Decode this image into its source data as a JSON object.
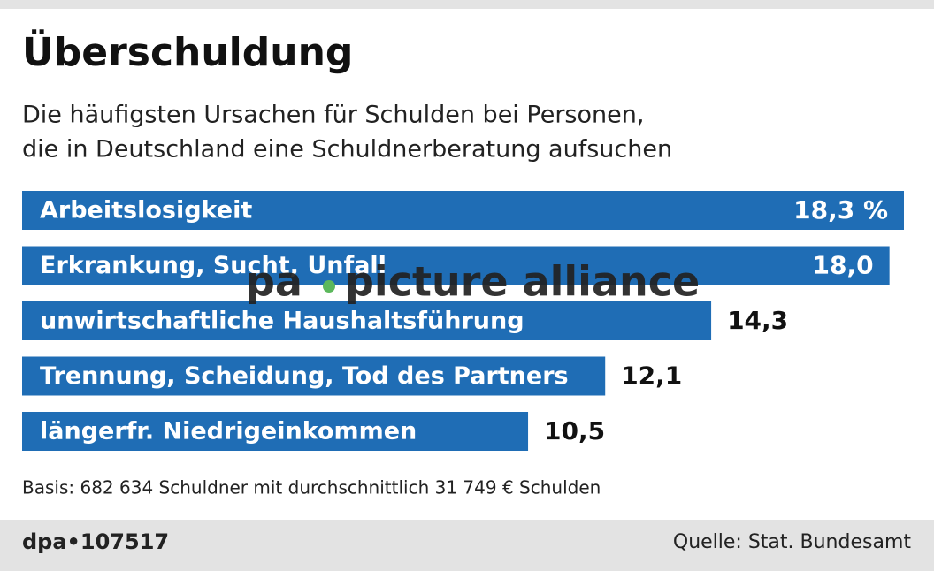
{
  "chart_data": {
    "type": "bar",
    "orientation": "horizontal",
    "title": "Überschuldung",
    "subtitle": [
      "Die häufigsten Ursachen für Schulden bei Personen,",
      "die in Deutschland eine Schuldnerberatung aufsuchen"
    ],
    "categories": [
      "Arbeitslosigkeit",
      "Erkrankung, Sucht, Unfall",
      "unwirtschaftliche Haushaltsführung",
      "Trennung, Scheidung, Tod des Partners",
      "längerfr. Niedrigeinkommen"
    ],
    "values": [
      18.3,
      18.0,
      14.3,
      12.1,
      10.5
    ],
    "value_labels": [
      "18,3 %",
      "18,0",
      "14,3",
      "12,1",
      "10,5"
    ],
    "color": "#1f6db5",
    "note": "Basis: 682 634 Schuldner mit durchschnittlich 31 749 € Schulden",
    "credit": "dpa•107517",
    "source": "Quelle: Stat. Bundesamt",
    "watermark": [
      "pa",
      "picture alliance"
    ]
  }
}
